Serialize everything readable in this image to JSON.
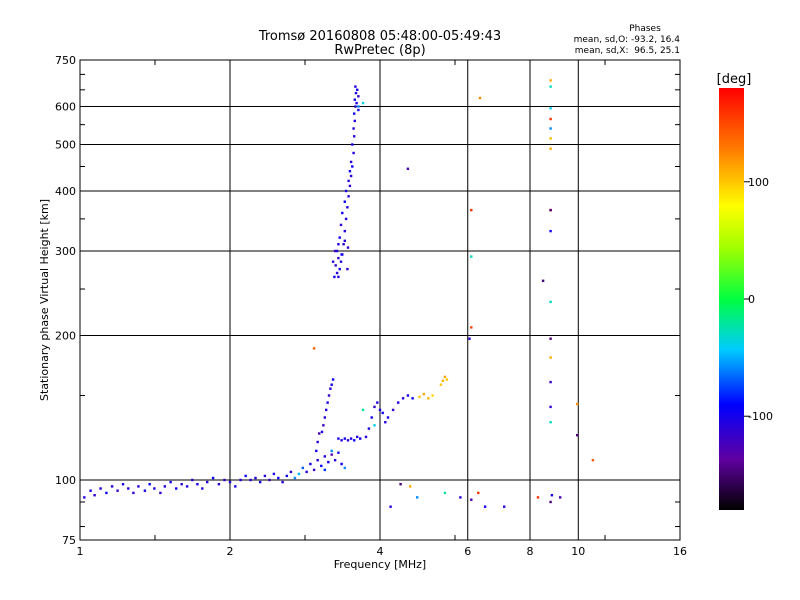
{
  "chart_data": {
    "type": "scatter",
    "title": "Tromsø 20160808 05:48:00-05:49:43",
    "subtitle": "RwPretec (8p)",
    "xlabel": "Frequency [MHz]",
    "ylabel": "Stationary phase Virtual Height [km]",
    "x_scale": "log2",
    "y_scale": "log",
    "xlim": [
      1,
      16
    ],
    "ylim": [
      75,
      750
    ],
    "x_ticks": [
      1,
      2,
      4,
      6,
      8,
      10,
      16
    ],
    "x_tick_labels": [
      "1",
      "2",
      "4",
      "6",
      "8",
      "10",
      "16"
    ],
    "y_ticks": [
      75,
      100,
      200,
      300,
      400,
      500,
      600,
      750
    ],
    "y_tick_labels": [
      "75",
      "100",
      "200",
      "300",
      "400",
      "500",
      "600",
      "750"
    ],
    "grid": true,
    "stats": {
      "heading": "Phases",
      "o_line": "mean, sd,O: -93.2, 16.4",
      "x_line": "mean, sd,X:  96.5, 25.1"
    },
    "colorbar": {
      "label": "[deg]",
      "range": [
        -180,
        180
      ],
      "ticks": [
        100,
        0,
        -100
      ],
      "tick_labels": [
        "100",
        "0",
        "-100"
      ]
    },
    "series": [
      {
        "points": [
          [
            1.02,
            92,
            -110
          ],
          [
            1.05,
            95,
            -100
          ],
          [
            1.07,
            93,
            -115
          ],
          [
            1.1,
            96,
            -105
          ],
          [
            1.13,
            94,
            -95
          ],
          [
            1.16,
            97,
            -110
          ],
          [
            1.19,
            95,
            -120
          ],
          [
            1.22,
            98,
            -100
          ],
          [
            1.25,
            96,
            -105
          ],
          [
            1.28,
            94,
            -115
          ],
          [
            1.31,
            97,
            -110
          ],
          [
            1.35,
            95,
            -100
          ],
          [
            1.38,
            98,
            -90
          ],
          [
            1.41,
            96,
            -105
          ],
          [
            1.45,
            94,
            -120
          ],
          [
            1.48,
            97,
            -110
          ],
          [
            1.52,
            99,
            -100
          ],
          [
            1.56,
            96,
            -95
          ],
          [
            1.6,
            98,
            -110
          ],
          [
            1.64,
            97,
            -105
          ],
          [
            1.68,
            100,
            -115
          ],
          [
            1.72,
            98,
            -100
          ],
          [
            1.76,
            96,
            -110
          ],
          [
            1.8,
            99,
            -105
          ],
          [
            1.85,
            101,
            -95
          ],
          [
            1.9,
            98,
            -110
          ],
          [
            1.95,
            100,
            -120
          ],
          [
            2.0,
            99,
            -105
          ],
          [
            2.05,
            97,
            -100
          ],
          [
            2.1,
            100,
            -110
          ],
          [
            2.15,
            102,
            -95
          ],
          [
            2.2,
            100,
            -115
          ],
          [
            2.25,
            101,
            -105
          ],
          [
            2.3,
            99,
            -100
          ],
          [
            2.35,
            102,
            -110
          ],
          [
            2.4,
            100,
            -120
          ],
          [
            2.45,
            103,
            -105
          ],
          [
            2.5,
            101,
            -95
          ],
          [
            2.55,
            99,
            -110
          ],
          [
            2.6,
            102,
            -100
          ],
          [
            2.65,
            104,
            -115
          ],
          [
            2.7,
            101,
            -60
          ],
          [
            2.75,
            103,
            -50
          ],
          [
            2.8,
            106,
            -70
          ],
          [
            2.85,
            104,
            -110
          ],
          [
            2.9,
            108,
            -100
          ],
          [
            2.95,
            105,
            -120
          ],
          [
            3.0,
            110,
            -105
          ],
          [
            3.05,
            107,
            -95
          ],
          [
            3.1,
            112,
            -110
          ],
          [
            3.15,
            109,
            -100
          ],
          [
            3.2,
            113,
            -130
          ],
          [
            3.25,
            110,
            -110
          ],
          [
            3.3,
            114,
            -100
          ],
          [
            3.35,
            108,
            -90
          ],
          [
            3.4,
            106,
            -60
          ],
          [
            3.1,
            135,
            -110
          ],
          [
            3.12,
            140,
            -105
          ],
          [
            3.14,
            145,
            -100
          ],
          [
            3.16,
            150,
            -115
          ],
          [
            3.18,
            155,
            -110
          ],
          [
            3.2,
            158,
            -100
          ],
          [
            3.22,
            162,
            -95
          ],
          [
            3.08,
            130,
            -120
          ],
          [
            3.06,
            126,
            -105
          ],
          [
            3.0,
            120,
            -110
          ],
          [
            3.02,
            125,
            -130
          ],
          [
            2.98,
            115,
            -100
          ],
          [
            3.3,
            122,
            -105
          ],
          [
            3.35,
            121,
            -110
          ],
          [
            3.4,
            122,
            -100
          ],
          [
            3.45,
            121,
            -115
          ],
          [
            3.5,
            122,
            -105
          ],
          [
            3.55,
            121,
            -95
          ],
          [
            3.6,
            123,
            -110
          ],
          [
            3.65,
            122,
            -100
          ],
          [
            3.75,
            123,
            -110
          ],
          [
            3.8,
            128,
            -105
          ],
          [
            3.85,
            135,
            -100
          ],
          [
            3.9,
            142,
            -115
          ],
          [
            3.95,
            145,
            -110
          ],
          [
            4.0,
            140,
            -105
          ],
          [
            4.05,
            138,
            -95
          ],
          [
            4.1,
            132,
            -110
          ],
          [
            4.15,
            135,
            -100
          ],
          [
            4.25,
            140,
            -115
          ],
          [
            4.35,
            145,
            -105
          ],
          [
            4.45,
            148,
            -110
          ],
          [
            4.55,
            150,
            -100
          ],
          [
            4.65,
            148,
            -95
          ],
          [
            4.8,
            149,
            100
          ],
          [
            4.9,
            151,
            110
          ],
          [
            5.0,
            148,
            105
          ],
          [
            5.1,
            150,
            95
          ],
          [
            5.3,
            158,
            100
          ],
          [
            5.35,
            161,
            105
          ],
          [
            5.4,
            164,
            110
          ],
          [
            5.45,
            162,
            100
          ],
          [
            3.9,
            130,
            -40
          ],
          [
            3.7,
            140,
            -20
          ],
          [
            2.95,
            188,
            140
          ],
          [
            3.2,
            115,
            -60
          ],
          [
            3.1,
            105,
            -80
          ],
          [
            3.3,
            265,
            -110
          ],
          [
            3.28,
            270,
            -105
          ],
          [
            3.32,
            275,
            -100
          ],
          [
            3.26,
            280,
            -115
          ],
          [
            3.34,
            285,
            -110
          ],
          [
            3.3,
            290,
            -120
          ],
          [
            3.36,
            295,
            -105
          ],
          [
            3.28,
            300,
            -100
          ],
          [
            3.38,
            310,
            -110
          ],
          [
            3.32,
            320,
            -95
          ],
          [
            3.4,
            330,
            -105
          ],
          [
            3.34,
            340,
            -115
          ],
          [
            3.42,
            350,
            -110
          ],
          [
            3.36,
            360,
            -100
          ],
          [
            3.44,
            370,
            -105
          ],
          [
            3.4,
            380,
            -95
          ],
          [
            3.46,
            390,
            -110
          ],
          [
            3.42,
            400,
            -100
          ],
          [
            3.48,
            410,
            -115
          ],
          [
            3.46,
            420,
            -105
          ],
          [
            3.5,
            430,
            -110
          ],
          [
            3.48,
            440,
            -100
          ],
          [
            3.52,
            450,
            -95
          ],
          [
            3.5,
            460,
            -110
          ],
          [
            3.54,
            480,
            -105
          ],
          [
            3.52,
            500,
            -100
          ],
          [
            3.55,
            520,
            -115
          ],
          [
            3.54,
            540,
            -110
          ],
          [
            3.56,
            560,
            -105
          ],
          [
            3.55,
            580,
            -100
          ],
          [
            3.57,
            600,
            -110
          ],
          [
            3.56,
            620,
            -95
          ],
          [
            3.58,
            640,
            -105
          ],
          [
            3.57,
            660,
            -110
          ],
          [
            3.6,
            650,
            -100
          ],
          [
            3.62,
            630,
            -115
          ],
          [
            3.59,
            610,
            -105
          ],
          [
            3.62,
            590,
            -110
          ],
          [
            3.25,
            300,
            -120
          ],
          [
            3.35,
            295,
            -100
          ],
          [
            3.22,
            285,
            -110
          ],
          [
            3.45,
            305,
            -115
          ],
          [
            3.3,
            310,
            -105
          ],
          [
            3.4,
            315,
            -110
          ],
          [
            3.24,
            265,
            -100
          ],
          [
            3.44,
            275,
            -115
          ],
          [
            3.62,
            600,
            -60
          ],
          [
            3.7,
            610,
            -40
          ],
          [
            4.55,
            445,
            -130
          ],
          [
            6.1,
            365,
            160
          ],
          [
            6.35,
            625,
            120
          ],
          [
            6.1,
            292,
            -30
          ],
          [
            6.1,
            208,
            150
          ],
          [
            6.05,
            197,
            -110
          ],
          [
            8.8,
            680,
            110
          ],
          [
            8.8,
            660,
            -30
          ],
          [
            8.8,
            595,
            -40
          ],
          [
            8.8,
            565,
            160
          ],
          [
            8.8,
            540,
            -60
          ],
          [
            8.8,
            515,
            105
          ],
          [
            8.8,
            490,
            110
          ],
          [
            8.8,
            365,
            170
          ],
          [
            8.8,
            365,
            -150
          ],
          [
            8.8,
            330,
            -100
          ],
          [
            8.5,
            260,
            -150
          ],
          [
            8.8,
            235,
            -30
          ],
          [
            8.8,
            197,
            -150
          ],
          [
            8.8,
            180,
            110
          ],
          [
            8.8,
            160,
            -120
          ],
          [
            8.8,
            142,
            -115
          ],
          [
            8.8,
            132,
            -30
          ],
          [
            9.95,
            144,
            120
          ],
          [
            9.95,
            124,
            -150
          ],
          [
            10.7,
            110,
            140
          ],
          [
            4.4,
            98,
            -150
          ],
          [
            4.6,
            97,
            110
          ],
          [
            4.75,
            92,
            -60
          ],
          [
            5.4,
            94,
            -20
          ],
          [
            5.8,
            92,
            -110
          ],
          [
            6.1,
            91,
            -130
          ],
          [
            6.3,
            94,
            160
          ],
          [
            6.5,
            88,
            -100
          ],
          [
            7.1,
            88,
            -110
          ],
          [
            8.3,
            92,
            160
          ],
          [
            8.8,
            90,
            -150
          ],
          [
            8.85,
            93,
            -100
          ],
          [
            9.2,
            92,
            -130
          ],
          [
            4.2,
            88,
            -110
          ]
        ]
      }
    ]
  }
}
